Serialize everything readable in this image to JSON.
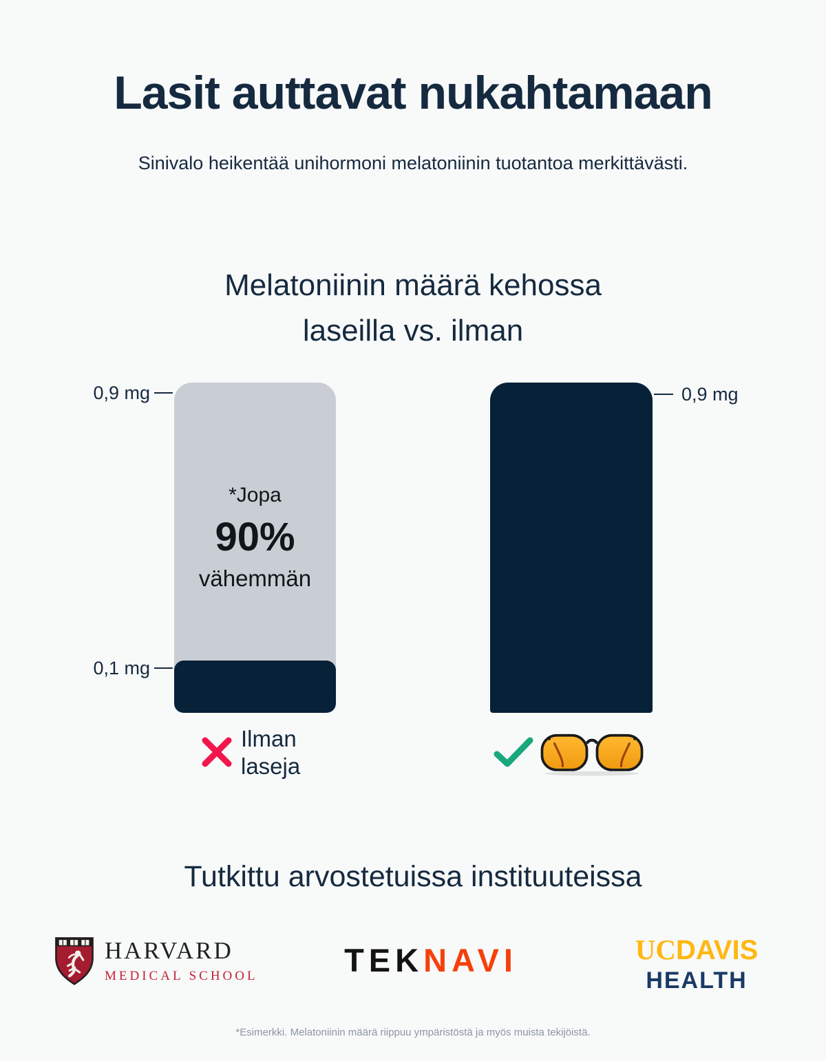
{
  "header": {
    "title": "Lasit auttavat nukahtamaan",
    "subtitle": "Sinivalo heikentää unihormoni melatoniinin tuotantoa merkittävästi."
  },
  "chart": {
    "title_line1": "Melatoniinin määrä kehossa",
    "title_line2": "laseilla vs. ilman",
    "without_glasses": {
      "max_label": "0,9 mg",
      "value_label": "0,1 mg",
      "note_line1": "*Jopa",
      "note_value": "90%",
      "note_line3": "vähemmän",
      "caption_line1": "Ilman",
      "caption_line2": "laseja"
    },
    "with_glasses": {
      "value_label": "0,9 mg"
    }
  },
  "chart_data": {
    "type": "bar",
    "title": "Melatoniinin määrä kehossa laseilla vs. ilman",
    "categories": [
      "Ilman laseja",
      "Laseilla"
    ],
    "series": [
      {
        "name": "Melatoniinin määrä kehossa (mg)",
        "values": [
          0.1,
          0.9
        ]
      }
    ],
    "unit": "mg",
    "ylim": [
      0,
      0.9
    ],
    "value_labels": [
      "0,1 mg",
      "0,9 mg"
    ],
    "reference_max_label": "0,9 mg",
    "annotation": "*Jopa 90% vähemmän",
    "legend_position": "none",
    "grid": false
  },
  "icons": {
    "cross": "cross-icon",
    "check": "check-icon",
    "glasses": "blue-light-glasses-icon",
    "harvard_crest": "harvard-crest-icon"
  },
  "institutions": {
    "heading": "Tutkittu arvostetuissa instituuteissa",
    "harvard": {
      "name_line1": "HARVARD",
      "name_line2": "MEDICAL SCHOOL"
    },
    "teknavi": {
      "part1": "TEK",
      "part2": "NAVI"
    },
    "ucdavis": {
      "part1": "UC",
      "part2": "DAVIS",
      "line2": "HEALTH"
    }
  },
  "footer": {
    "disclaimer": "*Esimerkki. Melatoniinin määrä riippuu ympäristöstä ja myös muista tekijöistä."
  },
  "colors": {
    "background": "#f8f9f9",
    "navy_bar": "#062138",
    "text_navy": "#152a3f",
    "bar_gray": "#c9ced4",
    "annotation_black": "#121519",
    "cross_red": "#f1164b",
    "check_green": "#18a87c",
    "lens_amber": "#f6a41c",
    "harvard_crimson": "#a41c30",
    "harvard_text_red": "#c22133",
    "teknavi_black": "#131313",
    "teknavi_orange": "#f4410c",
    "ucdavis_gold": "#fdb813",
    "ucdavis_blue": "#1a3a64",
    "footnote_gray": "#8b96a5"
  }
}
